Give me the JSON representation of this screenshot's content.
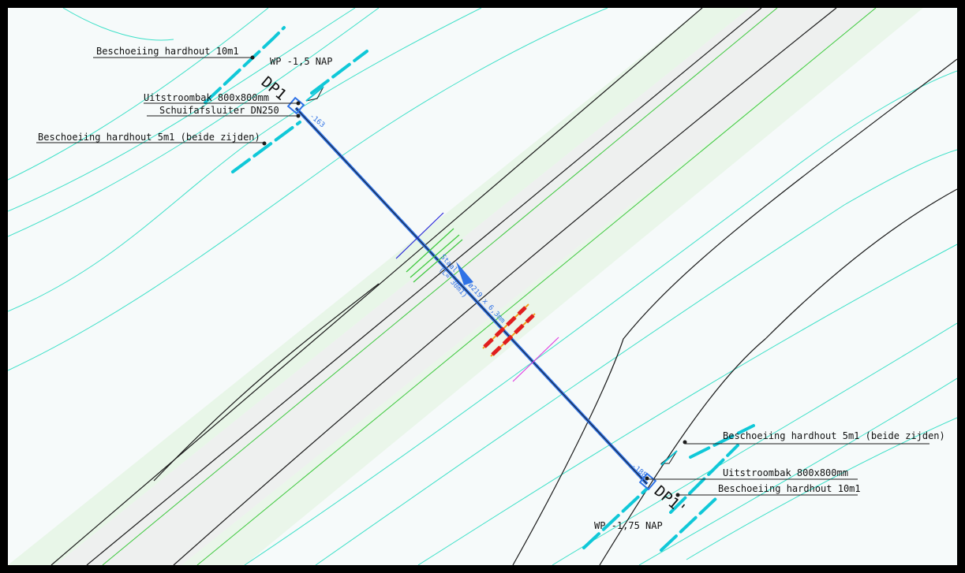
{
  "drawing": {
    "labels": {
      "wp_top": "WP -1,5 NAP",
      "wp_bottom": "WP -1,75 NAP",
      "dp1": "DP1",
      "dp1_prime": "DP1'",
      "uitstroombak_top": "Uitstroombak 800x800mm",
      "schuifafsluiter": "Schuifafsluiter DN250",
      "beschoeiing_10m1_top": "Beschoeiing hardhout 10m1",
      "beschoeiing_5m1_top": "Beschoeiing hardhout 5m1 (beide zijden)",
      "beschoeiing_5m1_bottom": "Beschoeiing hardhout 5m1 (beide zijden)",
      "uitstroombak_bottom": "Uitstroombak 800x800mm",
      "beschoeiing_10m1_bottom": "Beschoeiing hardhout 10m1",
      "level_top": "-163",
      "level_bottom": "-188",
      "pipe_material": "Staal",
      "pipe_length": "(L= 30m1)",
      "pipe_size": "ø219 x 6,3mm"
    },
    "colors": {
      "background": "#f6fafa",
      "contour": "#3ee0c8",
      "outline": "#1a1a1a",
      "road_band": "#eef0ef",
      "verge_band": "#e3f4e0",
      "pipe": "#2f72e6",
      "revetment": "#10c8d8",
      "green_line": "#3cc83c",
      "red_marker": "#e01e1e",
      "magenta_marker": "#e040e0",
      "orange_marker": "#f2a020"
    }
  }
}
